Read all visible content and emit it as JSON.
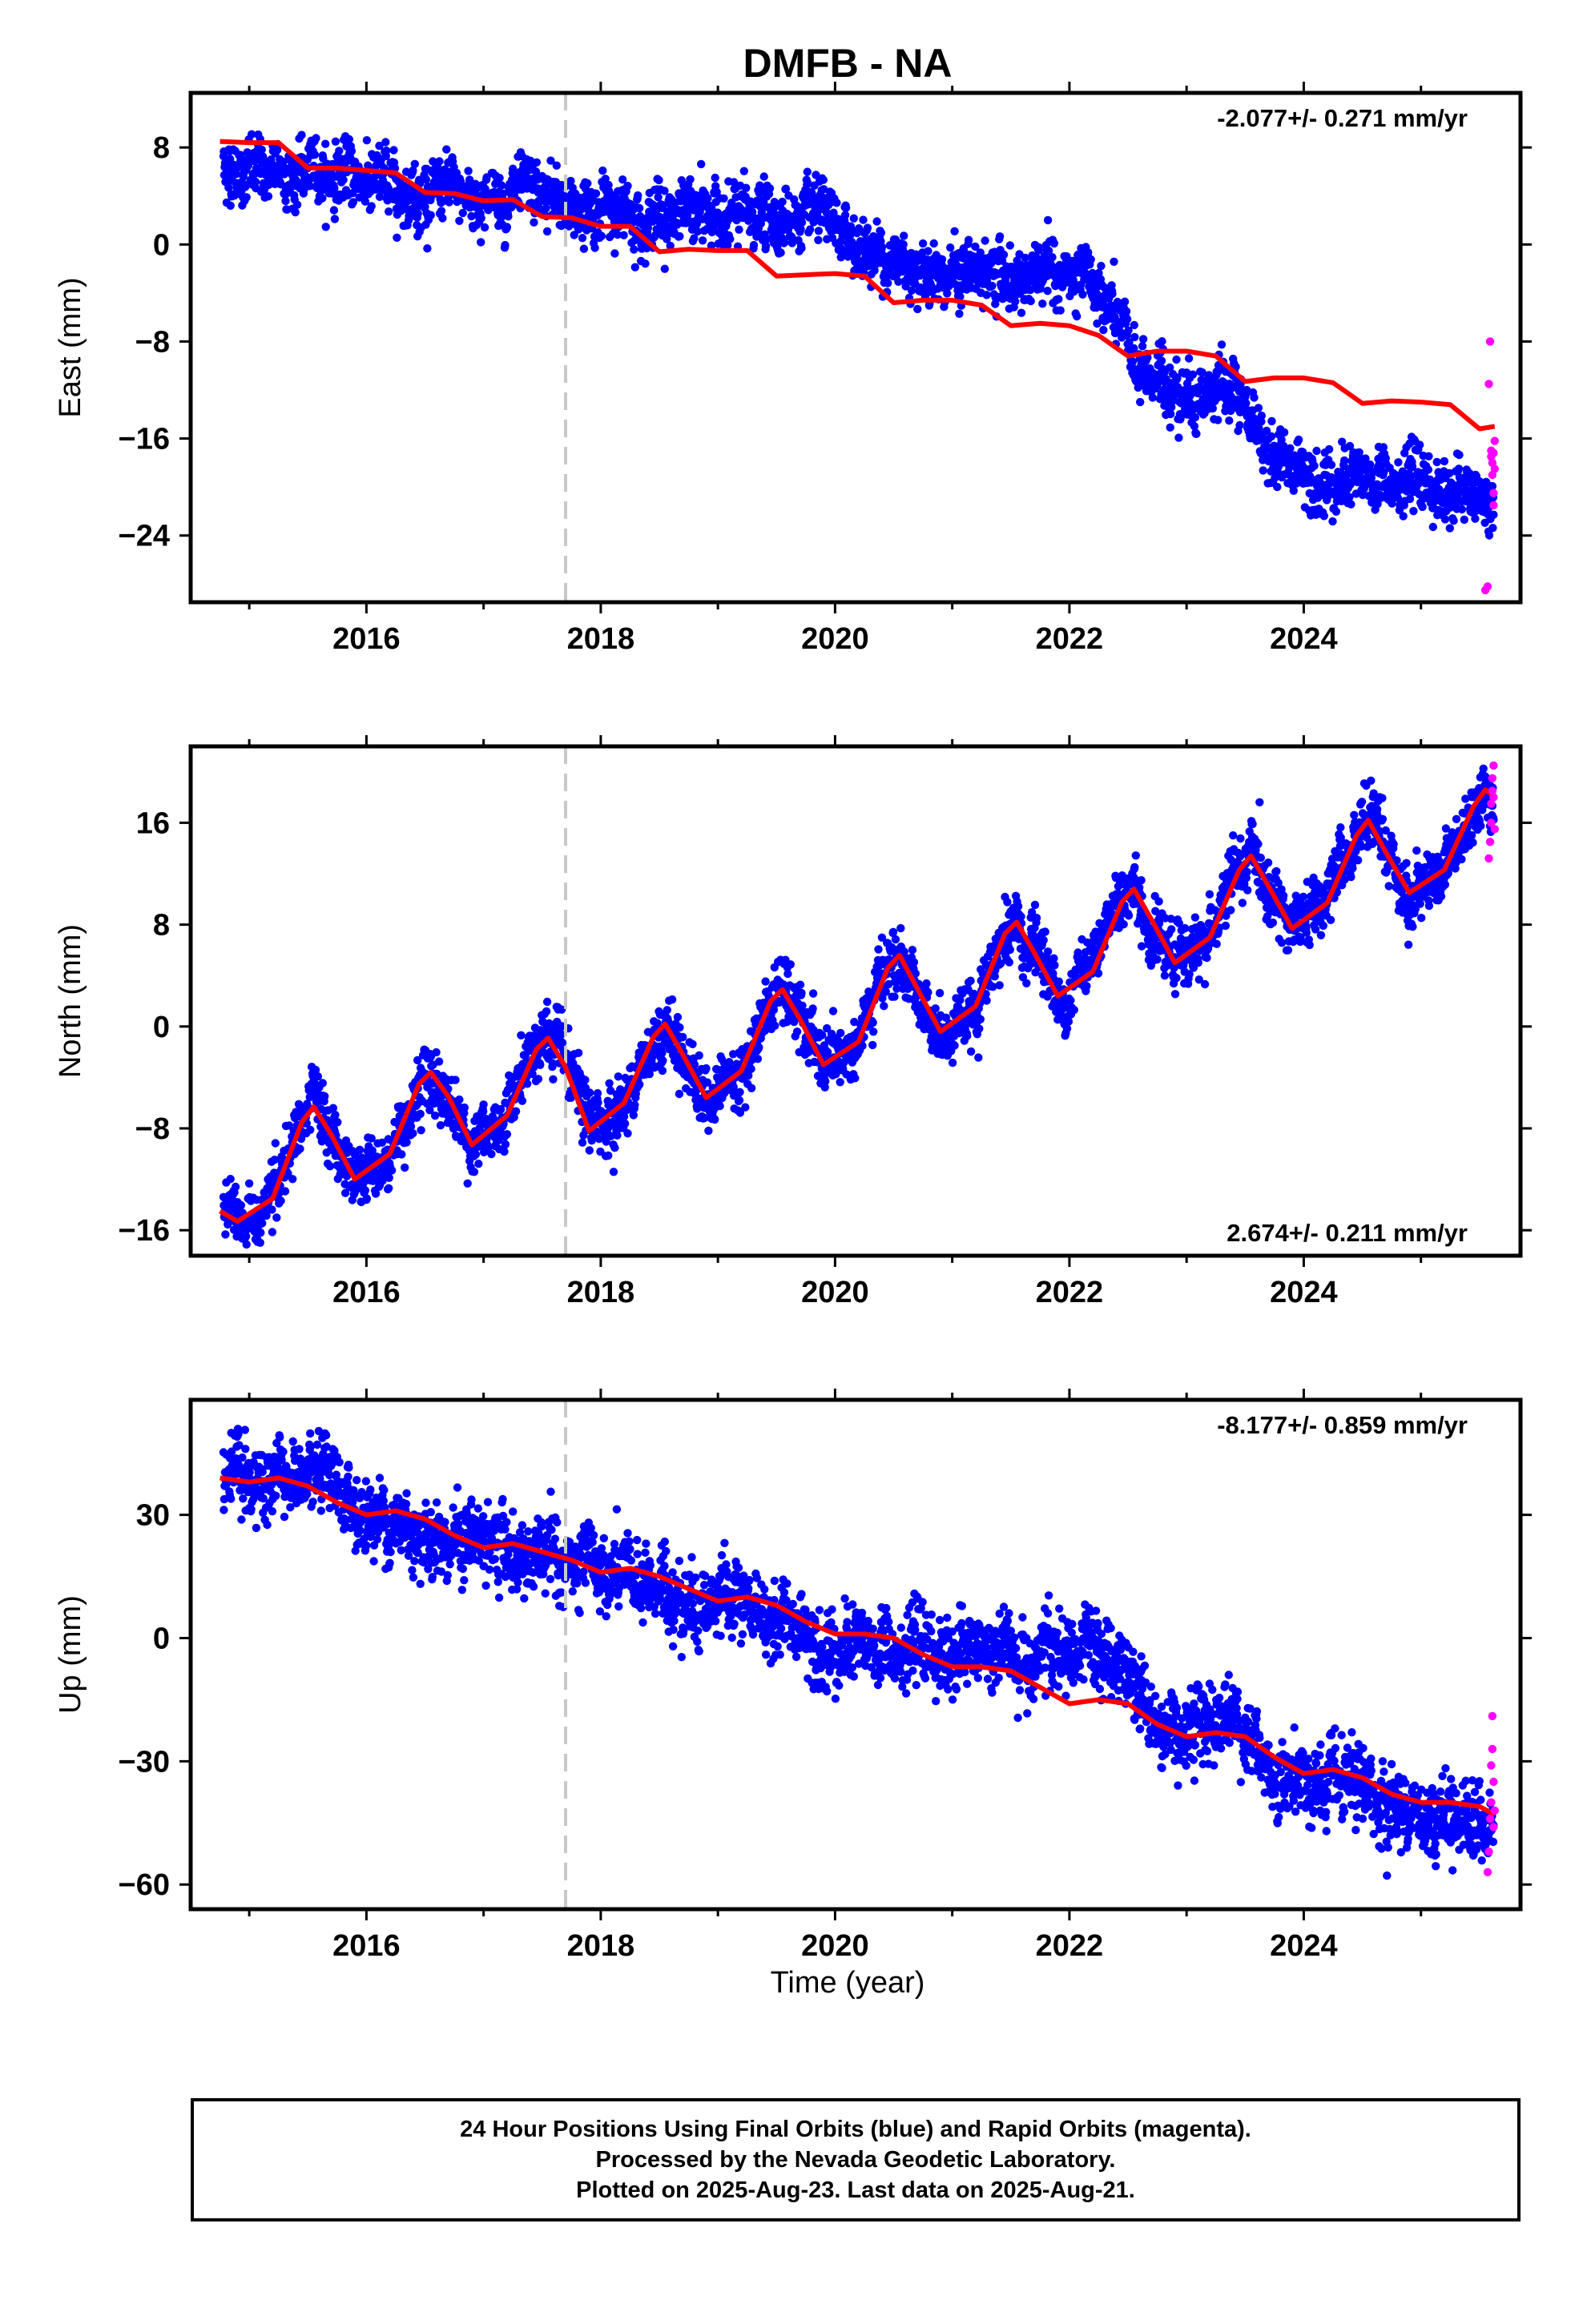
{
  "title": "DMFB - NA",
  "x_axis_label": "Time (year)",
  "footer": {
    "line1": "24 Hour Positions Using Final Orbits (blue) and Rapid Orbits (magenta).",
    "line2": "Processed by the Nevada Geodetic Laboratory.",
    "line3": "Plotted on 2025-Aug-23. Last data on 2025-Aug-21."
  },
  "colors": {
    "final_orbits": "#0000ff",
    "rapid_orbits": "#ff00ff",
    "model_fit": "#ff0000",
    "equipment_change_line": "#c8c8c8"
  },
  "chart_data": [
    {
      "type": "scatter",
      "component": "East",
      "ylabel": "East (mm)",
      "rate_annotation": "-2.077+/- 0.271 mm/yr",
      "rate_annotation_position": "top-right",
      "xlim": [
        2014.5,
        2025.85
      ],
      "ylim": [
        -29.5,
        12.5
      ],
      "xticks": [
        2016,
        2018,
        2020,
        2022,
        2024
      ],
      "yticks": [
        8,
        0,
        -8,
        -16,
        -24
      ],
      "ytick_labels": [
        "8",
        "0",
        "−8",
        "−16",
        "−24"
      ],
      "equipment_change_year": 2017.7,
      "model_fit": {
        "x": [
          2014.75,
          2015.0,
          2015.25,
          2015.5,
          2015.75,
          2016.0,
          2016.25,
          2016.5,
          2016.75,
          2017.0,
          2017.25,
          2017.5,
          2017.75,
          2018.0,
          2018.25,
          2018.5,
          2018.75,
          2019.0,
          2019.25,
          2019.5,
          2019.75,
          2020.0,
          2020.25,
          2020.5,
          2020.75,
          2021.0,
          2021.25,
          2021.5,
          2021.75,
          2022.0,
          2022.25,
          2022.5,
          2022.75,
          2023.0,
          2023.25,
          2023.5,
          2023.75,
          2024.0,
          2024.25,
          2024.5,
          2024.75,
          2025.0,
          2025.25,
          2025.5,
          2025.63
        ],
        "y": [
          8.5,
          8.4,
          8.4,
          6.3,
          6.3,
          6.1,
          5.9,
          4.3,
          4.2,
          3.6,
          3.7,
          2.3,
          2.2,
          1.5,
          1.5,
          -0.6,
          -0.4,
          -0.5,
          -0.5,
          -2.6,
          -2.5,
          -2.4,
          -2.6,
          -4.8,
          -4.6,
          -4.6,
          -5.0,
          -6.7,
          -6.5,
          -6.7,
          -7.5,
          -9.2,
          -8.8,
          -8.8,
          -9.2,
          -11.3,
          -11.0,
          -11.0,
          -11.4,
          -13.1,
          -12.9,
          -13.0,
          -13.2,
          -15.2,
          -15.0
        ]
      },
      "final_orbit_trend_knots": {
        "x": [
          2014.75,
          2015.25,
          2015.75,
          2016.5,
          2017.5,
          2018.0,
          2019.0,
          2019.8,
          2020.4,
          2021.0,
          2021.5,
          2022.0,
          2022.3,
          2022.6,
          2023.0,
          2023.4,
          2023.8,
          2024.3,
          2024.8,
          2025.3,
          2025.6
        ],
        "y": [
          6.3,
          5.8,
          6.0,
          4.3,
          3.6,
          2.8,
          2.4,
          2.0,
          -1.0,
          -2.2,
          -2.8,
          -2.8,
          -4.5,
          -10.5,
          -12.0,
          -12.5,
          -18.0,
          -19.5,
          -19.5,
          -20.5,
          -21.5
        ]
      },
      "rapid_orbits": {
        "x": [
          2025.55,
          2025.57,
          2025.58,
          2025.59,
          2025.6,
          2025.6,
          2025.61,
          2025.61,
          2025.62,
          2025.62,
          2025.62,
          2025.63,
          2025.63
        ],
        "y": [
          -28.5,
          -28.2,
          -11.5,
          -8.0,
          -17.0,
          -17.5,
          -18.0,
          -19.0,
          -20.5,
          -21.5,
          -17.2,
          -16.2,
          -18.5
        ]
      }
    },
    {
      "type": "scatter",
      "component": "North",
      "ylabel": "North (mm)",
      "rate_annotation": "2.674+/- 0.211 mm/yr",
      "rate_annotation_position": "bottom-right",
      "xlim": [
        2014.5,
        2025.85
      ],
      "ylim": [
        -18,
        22
      ],
      "xticks": [
        2016,
        2018,
        2020,
        2022,
        2024
      ],
      "yticks": [
        16,
        8,
        0,
        -8,
        -16
      ],
      "ytick_labels": [
        "16",
        "8",
        "0",
        "−8",
        "−16"
      ],
      "equipment_change_year": 2017.7,
      "model_fit": {
        "x": [
          2014.75,
          2014.9,
          2015.2,
          2015.45,
          2015.55,
          2015.7,
          2015.9,
          2016.2,
          2016.45,
          2016.55,
          2016.7,
          2016.9,
          2017.2,
          2017.45,
          2017.55,
          2017.7,
          2017.9,
          2018.2,
          2018.45,
          2018.55,
          2018.7,
          2018.9,
          2019.2,
          2019.45,
          2019.55,
          2019.7,
          2019.9,
          2020.2,
          2020.45,
          2020.55,
          2020.7,
          2020.9,
          2021.2,
          2021.45,
          2021.55,
          2021.7,
          2021.9,
          2022.2,
          2022.45,
          2022.55,
          2022.7,
          2022.9,
          2023.2,
          2023.45,
          2023.55,
          2023.7,
          2023.9,
          2024.2,
          2024.45,
          2024.55,
          2024.7,
          2024.9,
          2025.2,
          2025.45,
          2025.55,
          2025.63
        ],
        "y": [
          -14.5,
          -15.3,
          -13.5,
          -7.5,
          -6.3,
          -8.5,
          -12.0,
          -10.0,
          -4.5,
          -3.6,
          -5.5,
          -9.3,
          -7.0,
          -1.8,
          -0.9,
          -3.2,
          -8.2,
          -6.0,
          -0.8,
          0.2,
          -2.2,
          -5.6,
          -3.5,
          2.0,
          2.9,
          0.6,
          -3.0,
          -1.2,
          4.6,
          5.6,
          3.0,
          -0.4,
          1.6,
          7.3,
          8.2,
          5.8,
          2.4,
          4.3,
          9.8,
          10.8,
          8.4,
          5.0,
          7.0,
          12.3,
          13.4,
          11.0,
          7.7,
          9.7,
          15.0,
          16.2,
          13.7,
          10.5,
          12.3,
          17.3,
          18.6,
          18.0
        ]
      },
      "rapid_orbits": {
        "x": [
          2025.58,
          2025.59,
          2025.6,
          2025.6,
          2025.61,
          2025.61,
          2025.62,
          2025.62,
          2025.63
        ],
        "y": [
          13.2,
          14.5,
          16.0,
          17.5,
          18.5,
          19.5,
          20.5,
          18.0,
          15.5
        ]
      }
    },
    {
      "type": "scatter",
      "component": "Up",
      "ylabel": "Up (mm)",
      "rate_annotation": "-8.177+/- 0.859 mm/yr",
      "rate_annotation_position": "top-right",
      "xlim": [
        2014.5,
        2025.85
      ],
      "ylim": [
        -66,
        58
      ],
      "xticks": [
        2016,
        2018,
        2020,
        2022,
        2024
      ],
      "yticks": [
        30,
        0,
        -30,
        -60
      ],
      "ytick_labels": [
        "30",
        "0",
        "−30",
        "−60"
      ],
      "equipment_change_year": 2017.7,
      "model_fit": {
        "x": [
          2014.75,
          2015.0,
          2015.25,
          2015.5,
          2015.75,
          2016.0,
          2016.25,
          2016.5,
          2016.75,
          2017.0,
          2017.25,
          2017.5,
          2017.75,
          2018.0,
          2018.25,
          2018.5,
          2018.75,
          2019.0,
          2019.25,
          2019.5,
          2019.75,
          2020.0,
          2020.25,
          2020.5,
          2020.75,
          2021.0,
          2021.25,
          2021.5,
          2021.75,
          2022.0,
          2022.25,
          2022.5,
          2022.75,
          2023.0,
          2023.25,
          2023.5,
          2023.75,
          2024.0,
          2024.25,
          2024.5,
          2024.75,
          2025.0,
          2025.25,
          2025.5,
          2025.63
        ],
        "y": [
          39,
          38,
          39,
          37,
          33,
          30,
          31,
          29,
          25,
          22,
          23,
          21,
          19,
          16,
          17,
          15,
          12,
          9,
          10,
          8,
          4,
          1,
          1,
          0,
          -4,
          -7,
          -7,
          -8,
          -12,
          -16,
          -15,
          -16,
          -21,
          -24,
          -23,
          -24,
          -29,
          -33,
          -32,
          -34,
          -38,
          -40,
          -40,
          -41,
          -43
        ]
      },
      "final_orbit_trend_knots": {
        "x": [
          2014.75,
          2015.5,
          2016.0,
          2017.0,
          2017.7,
          2018.5,
          2019.5,
          2020.0,
          2021.0,
          2021.8,
          2022.4,
          2022.8,
          2023.4,
          2023.8,
          2024.5,
          2025.0,
          2025.6
        ],
        "y": [
          40,
          38,
          30,
          23,
          17,
          12,
          5,
          -2,
          -4,
          -4,
          -5,
          -22,
          -18,
          -36,
          -38,
          -42,
          -44
        ]
      },
      "rapid_orbits": {
        "x": [
          2025.57,
          2025.58,
          2025.59,
          2025.6,
          2025.6,
          2025.61,
          2025.61,
          2025.62,
          2025.62,
          2025.63
        ],
        "y": [
          -57,
          -52,
          -44,
          -40,
          -31,
          -27,
          -19,
          -35,
          -46,
          -42
        ]
      }
    }
  ]
}
